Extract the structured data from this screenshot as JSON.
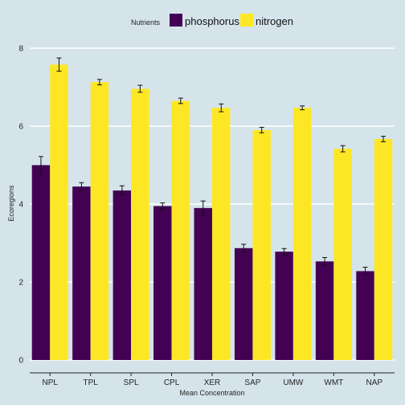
{
  "chart_data": {
    "type": "bar",
    "title": "",
    "xlabel": "Mean Concentration",
    "ylabel": "Ecoregions",
    "categories": [
      "NPL",
      "TPL",
      "SPL",
      "CPL",
      "XER",
      "SAP",
      "UMW",
      "WMT",
      "NAP"
    ],
    "ylim": [
      0,
      8.2
    ],
    "yticks": [
      0,
      2,
      4,
      6,
      8
    ],
    "grid": true,
    "legend": {
      "title": "Nutrients",
      "position": "top"
    },
    "series": [
      {
        "name": "phosphorus",
        "color": "#440154",
        "values": [
          5.0,
          4.45,
          4.35,
          3.95,
          3.9,
          2.87,
          2.78,
          2.53,
          2.28
        ],
        "error": [
          0.22,
          0.1,
          0.12,
          0.08,
          0.18,
          0.1,
          0.08,
          0.1,
          0.1
        ]
      },
      {
        "name": "nitrogen",
        "color": "#fde725",
        "values": [
          7.58,
          7.13,
          6.96,
          6.65,
          6.47,
          5.9,
          6.47,
          5.42,
          5.67
        ],
        "error": [
          0.17,
          0.07,
          0.09,
          0.07,
          0.1,
          0.07,
          0.05,
          0.08,
          0.07
        ]
      }
    ]
  }
}
